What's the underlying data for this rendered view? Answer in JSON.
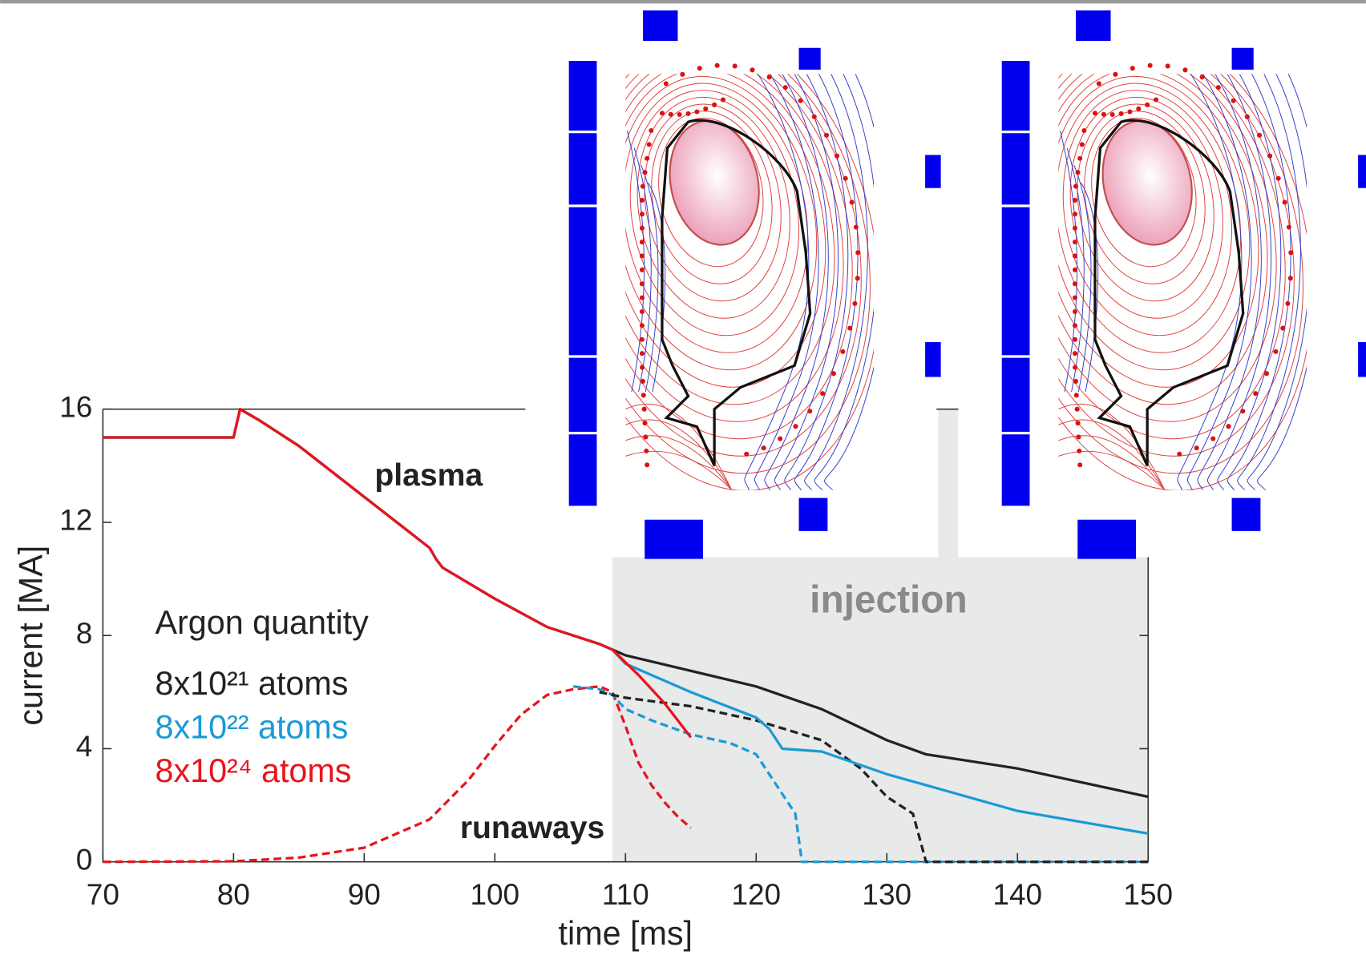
{
  "chart_data": {
    "type": "line",
    "xlabel": "time [ms]",
    "ylabel": "current [MA]",
    "xlim": [
      70,
      150
    ],
    "xticks": [
      70,
      80,
      90,
      100,
      110,
      120,
      130,
      140,
      150
    ],
    "ylim": [
      0,
      16
    ],
    "yticks": [
      0,
      4,
      8,
      12,
      16
    ],
    "legend_title": "Argon quantity",
    "annotations": {
      "plasma": "plasma",
      "runaways": "runaways",
      "injection": {
        "label": "injection",
        "x_start": 109
      }
    },
    "series": [
      {
        "name": "8x10²¹ atoms",
        "color": "#222222",
        "x": [
          70,
          80,
          80.5,
          82,
          85,
          90,
          95,
          95.5,
          96,
          100,
          104,
          108,
          109,
          110,
          120,
          125,
          130,
          133,
          140,
          150
        ],
        "values": [
          15,
          15,
          16,
          15.6,
          14.7,
          12.9,
          11.1,
          10.7,
          10.4,
          9.3,
          8.3,
          7.7,
          7.5,
          7.3,
          6.2,
          5.4,
          4.3,
          3.8,
          3.3,
          2.3
        ],
        "runaway_x": [
          108,
          110,
          115,
          120,
          125,
          128,
          130,
          132,
          133,
          150
        ],
        "runaway_values": [
          6.0,
          5.8,
          5.5,
          5.0,
          4.3,
          3.3,
          2.3,
          1.7,
          0,
          0
        ]
      },
      {
        "name": "8x10²² atoms",
        "color": "#1a9ad6",
        "x": [
          70,
          80,
          80.5,
          82,
          85,
          90,
          95,
          95.5,
          96,
          100,
          104,
          108,
          109,
          110,
          115,
          120,
          121,
          122,
          125,
          130,
          140,
          150
        ],
        "values": [
          15,
          15,
          16,
          15.6,
          14.7,
          12.9,
          11.1,
          10.7,
          10.4,
          9.3,
          8.3,
          7.7,
          7.5,
          7.0,
          6.0,
          5.1,
          4.7,
          4.0,
          3.9,
          3.1,
          1.8,
          1.0
        ],
        "runaway_x": [
          106,
          108,
          109,
          110,
          112,
          115,
          118,
          120,
          122,
          123,
          123.5,
          150
        ],
        "runaway_values": [
          6.2,
          6.1,
          5.9,
          5.4,
          5.0,
          4.5,
          4.2,
          3.8,
          2.4,
          1.7,
          0,
          0
        ]
      },
      {
        "name": "8x10²⁴ atoms",
        "color": "#e8141c",
        "x": [
          70,
          80,
          80.5,
          82,
          85,
          90,
          95,
          95.5,
          96,
          100,
          104,
          108,
          109,
          111,
          113,
          115
        ],
        "values": [
          15,
          15,
          16,
          15.6,
          14.7,
          12.9,
          11.1,
          10.7,
          10.4,
          9.3,
          8.3,
          7.7,
          7.5,
          6.6,
          5.6,
          4.4
        ],
        "runaway_x": [
          70,
          80,
          85,
          90,
          95,
          98,
          100,
          102,
          104,
          106,
          108,
          109,
          110,
          111,
          112,
          113,
          114,
          115
        ],
        "runaway_values": [
          0,
          0.02,
          0.15,
          0.5,
          1.5,
          2.9,
          4.1,
          5.2,
          5.9,
          6.1,
          6.2,
          6.0,
          4.8,
          3.5,
          2.7,
          2.1,
          1.6,
          1.2
        ]
      }
    ]
  }
}
